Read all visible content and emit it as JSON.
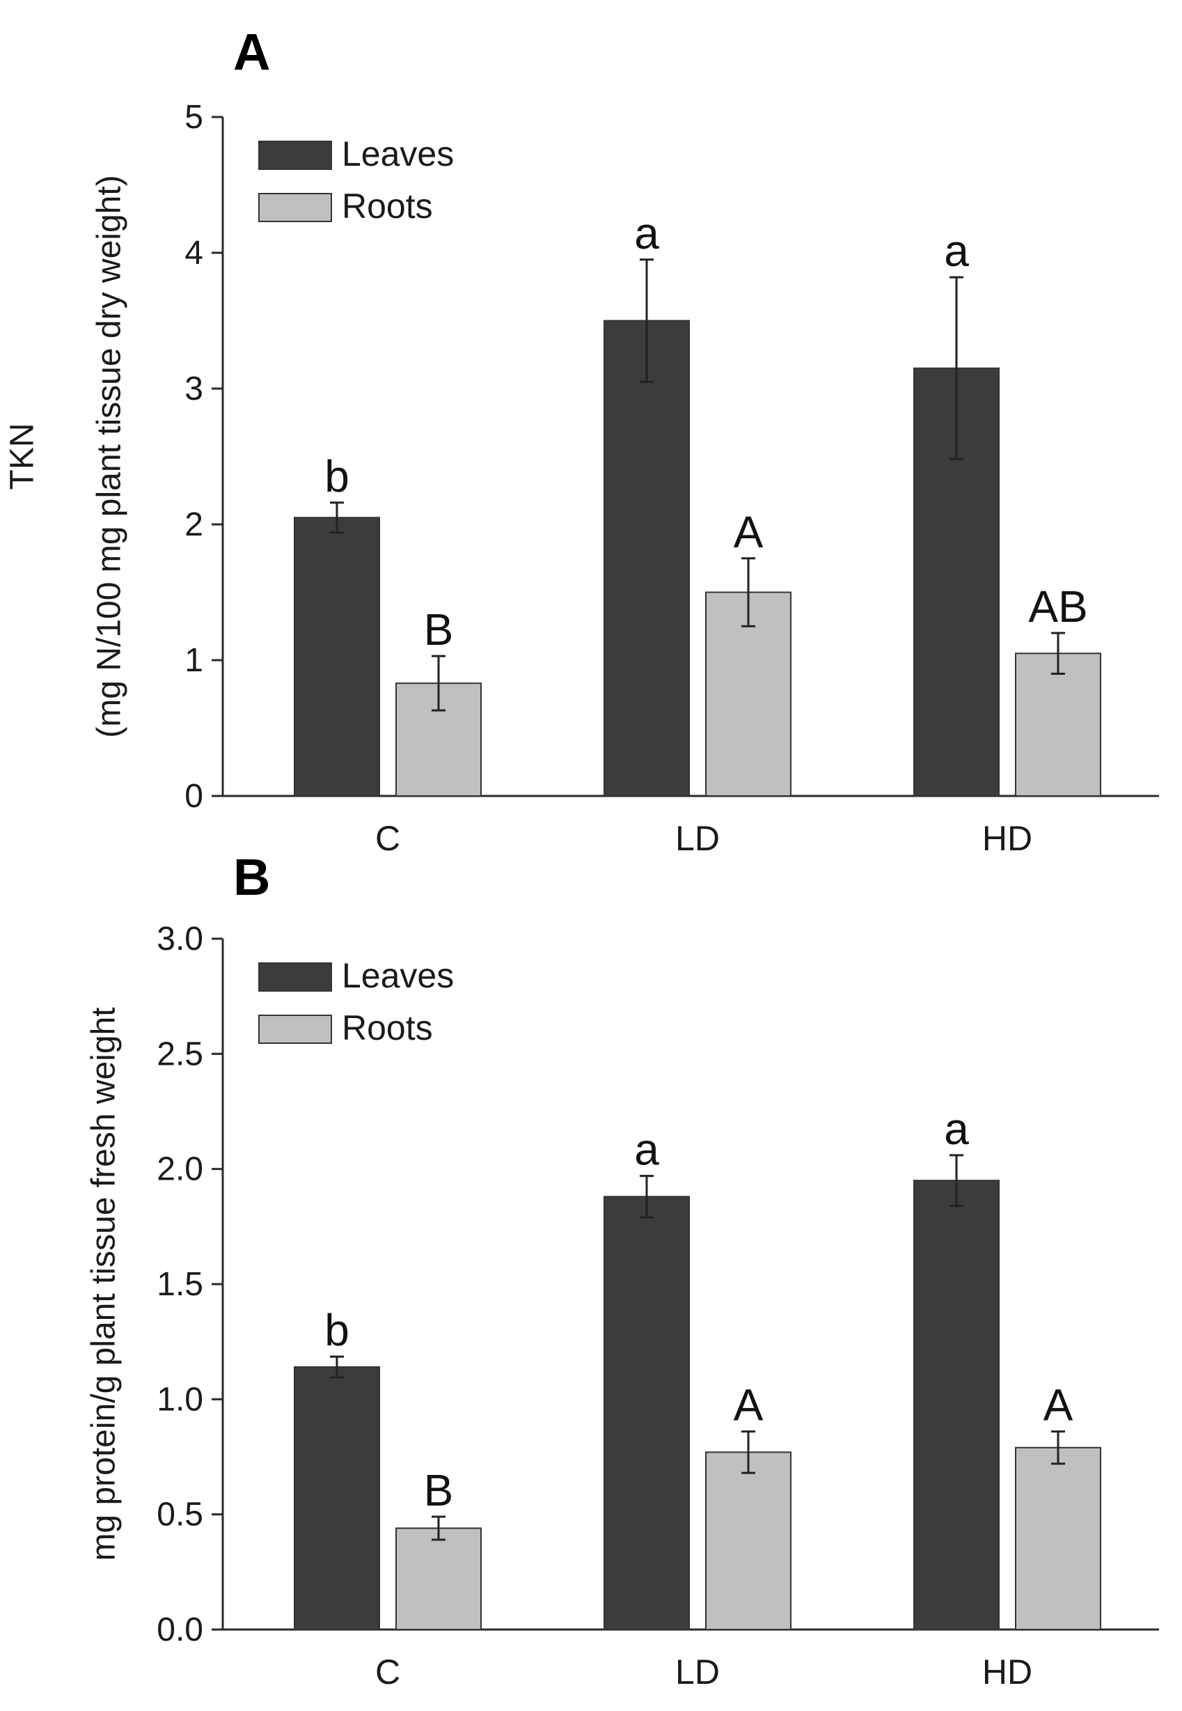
{
  "colors": {
    "leaves": "#3c3c3c",
    "roots": "#c0c0c0",
    "axis": "#2a2a2a",
    "text": "#1a1a1a"
  },
  "chart_data": [
    {
      "panel_label": "A",
      "type": "bar",
      "categories": [
        "C",
        "LD",
        "HD"
      ],
      "ylabel_lines": [
        "TKN",
        "(mg N/100 mg plant tissue dry weight)"
      ],
      "ylim": [
        0,
        5
      ],
      "yticks": [
        0,
        1,
        2,
        3,
        4,
        5
      ],
      "ytick_labels": [
        "0",
        "1",
        "2",
        "3",
        "4",
        "5"
      ],
      "legend": [
        "Leaves",
        "Roots"
      ],
      "series": [
        {
          "name": "Leaves",
          "values": [
            2.05,
            3.5,
            3.15
          ],
          "errors": [
            0.11,
            0.45,
            0.67
          ],
          "letters": [
            "b",
            "a",
            "a"
          ]
        },
        {
          "name": "Roots",
          "values": [
            0.83,
            1.5,
            1.05
          ],
          "errors": [
            0.2,
            0.25,
            0.15
          ],
          "letters": [
            "B",
            "A",
            "AB"
          ]
        }
      ]
    },
    {
      "panel_label": "B",
      "type": "bar",
      "categories": [
        "C",
        "LD",
        "HD"
      ],
      "ylabel_lines": [
        "mg protein/g plant tissue fresh weight"
      ],
      "ylim": [
        0,
        3
      ],
      "yticks": [
        0,
        0.5,
        1,
        1.5,
        2,
        2.5,
        3
      ],
      "ytick_labels": [
        "0.0",
        "0.5",
        "1.0",
        "1.5",
        "2.0",
        "2.5",
        "3.0"
      ],
      "legend": [
        "Leaves",
        "Roots"
      ],
      "series": [
        {
          "name": "Leaves",
          "values": [
            1.14,
            1.88,
            1.95
          ],
          "errors": [
            0.045,
            0.09,
            0.11
          ],
          "letters": [
            "b",
            "a",
            "a"
          ]
        },
        {
          "name": "Roots",
          "values": [
            0.44,
            0.77,
            0.79
          ],
          "errors": [
            0.05,
            0.09,
            0.07
          ],
          "letters": [
            "B",
            "A",
            "A"
          ]
        }
      ]
    }
  ]
}
